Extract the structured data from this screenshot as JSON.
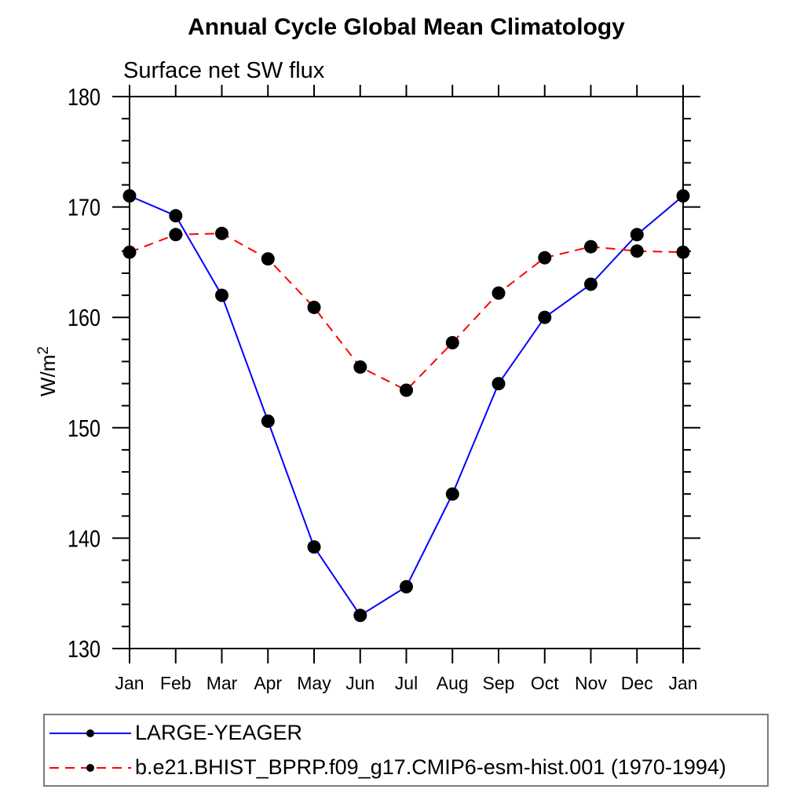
{
  "chart_data": {
    "type": "line",
    "title": "Annual Cycle Global Mean Climatology",
    "subtitle": "Surface net SW flux",
    "ylabel": "W/m²",
    "ylim": [
      130,
      180
    ],
    "y_major_step": 10,
    "y_minor_step": 2,
    "y_tick_labels": [
      "130",
      "140",
      "150",
      "160",
      "170",
      "180"
    ],
    "x_categories": [
      "Jan",
      "Feb",
      "Mar",
      "Apr",
      "May",
      "Jun",
      "Jul",
      "Aug",
      "Sep",
      "Oct",
      "Nov",
      "Dec",
      "Jan"
    ],
    "grid": false,
    "legend_position": "bottom-left-box",
    "frame_color": "#000000",
    "series": [
      {
        "name": "LARGE-YEAGER",
        "color": "#0000ff",
        "line_style": "solid",
        "marker": "filled-circle",
        "marker_color": "#000000",
        "values": [
          171.0,
          169.2,
          162.0,
          150.6,
          139.2,
          133.0,
          135.6,
          144.0,
          154.0,
          160.0,
          163.0,
          167.5,
          171.0
        ]
      },
      {
        "name": "b.e21.BHIST_BPRP.f09_g17.CMIP6-esm-hist.001 (1970-1994)",
        "color": "#ff0000",
        "line_style": "dashed",
        "marker": "filled-circle",
        "marker_color": "#000000",
        "values": [
          165.9,
          167.5,
          167.6,
          165.3,
          160.9,
          155.5,
          153.4,
          157.7,
          162.2,
          165.4,
          166.4,
          166.0,
          165.9
        ]
      }
    ]
  }
}
